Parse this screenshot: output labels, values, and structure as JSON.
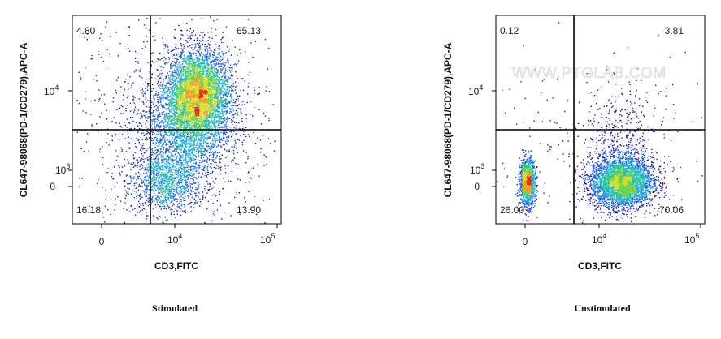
{
  "chart_data": [
    {
      "type": "scatter",
      "caption": "Stimulated",
      "xlabel": "CD3,FITC",
      "ylabel": "CL647-98068(PD-1/CD279),APC-A",
      "x_ticks": [
        {
          "base": "0",
          "exp": ""
        },
        {
          "base": "10",
          "exp": "4"
        },
        {
          "base": "10",
          "exp": "5"
        }
      ],
      "y_ticks": [
        {
          "base": "0",
          "exp": ""
        },
        {
          "base": "10",
          "exp": "3"
        },
        {
          "base": "10",
          "exp": "4"
        }
      ],
      "quadrants": {
        "top_left": "4.80",
        "top_right": "65.13",
        "bottom_left": "16.18",
        "bottom_right": "13.90"
      },
      "watermark": "",
      "populations": [
        {
          "cx": 0.44,
          "cy": 0.2,
          "sx": 0.085,
          "sy": 0.075,
          "n": 1100
        },
        {
          "cx": 0.6,
          "cy": 0.62,
          "sx": 0.075,
          "sy": 0.11,
          "n": 4200
        },
        {
          "cx": 0.53,
          "cy": 0.46,
          "sx": 0.11,
          "sy": 0.14,
          "n": 2000
        },
        {
          "cx": 0.5,
          "cy": 0.5,
          "sx": 0.25,
          "sy": 0.3,
          "n": 1000
        }
      ],
      "colors": [
        "#1a1ab4",
        "#1f5fe0",
        "#21a7e0",
        "#2bc5a0",
        "#6fd24a",
        "#d6dc2c",
        "#f0a020",
        "#e03020"
      ]
    },
    {
      "type": "scatter",
      "caption": "Unstimulated",
      "xlabel": "CD3,FITC",
      "ylabel": "CL647-98068(PD-1/CD279),APC-A",
      "x_ticks": [
        {
          "base": "0",
          "exp": ""
        },
        {
          "base": "10",
          "exp": "4"
        },
        {
          "base": "10",
          "exp": "5"
        }
      ],
      "y_ticks": [
        {
          "base": "0",
          "exp": ""
        },
        {
          "base": "10",
          "exp": "3"
        },
        {
          "base": "10",
          "exp": "4"
        }
      ],
      "quadrants": {
        "top_left": "0.12",
        "top_right": "3.81",
        "bottom_left": "26.00",
        "bottom_right": "70.06"
      },
      "watermark": "WWW.PTGLAB.COM",
      "populations": [
        {
          "cx": 0.15,
          "cy": 0.2,
          "sx": 0.018,
          "sy": 0.055,
          "n": 1400
        },
        {
          "cx": 0.6,
          "cy": 0.2,
          "sx": 0.075,
          "sy": 0.06,
          "n": 3600
        },
        {
          "cx": 0.6,
          "cy": 0.36,
          "sx": 0.09,
          "sy": 0.14,
          "n": 500
        },
        {
          "cx": 0.45,
          "cy": 0.35,
          "sx": 0.3,
          "sy": 0.25,
          "n": 220
        }
      ],
      "colors": [
        "#1a1ab4",
        "#1f5fe0",
        "#21a7e0",
        "#2bc5a0",
        "#6fd24a",
        "#d6dc2c",
        "#f0a020",
        "#e03020"
      ]
    }
  ]
}
